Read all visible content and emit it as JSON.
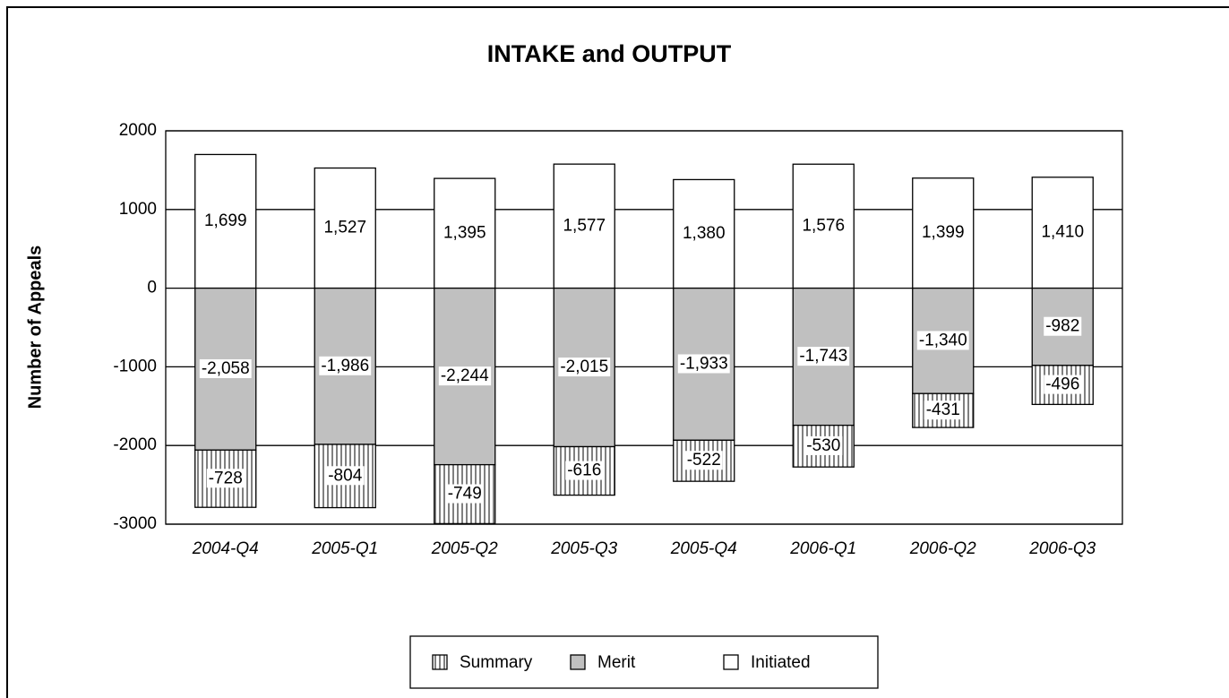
{
  "chart_data": {
    "type": "bar",
    "stacked": true,
    "title": "INTAKE and OUTPUT",
    "y_label": "Number of Appeals",
    "categories": [
      "2004-Q4",
      "2005-Q1",
      "2005-Q2",
      "2005-Q3",
      "2005-Q4",
      "2006-Q1",
      "2006-Q2",
      "2006-Q3"
    ],
    "series": [
      {
        "name": "Summary",
        "color": "#808080",
        "hatch": "vertical",
        "values": [
          -728,
          -804,
          -749,
          -616,
          -522,
          -530,
          -431,
          -496
        ],
        "value_labels": [
          "-728",
          "-804",
          "-749",
          "-616",
          "-522",
          "-530",
          "-431",
          "-496"
        ]
      },
      {
        "name": "Merit",
        "color": "#c0c0c0",
        "values": [
          -2058,
          -1986,
          -2244,
          -2015,
          -1933,
          -1743,
          -1340,
          -982
        ],
        "value_labels": [
          "-2,058",
          "-1,986",
          "-2,244",
          "-2,015",
          "-1,933",
          "-1,743",
          "-1,340",
          "-982"
        ]
      },
      {
        "name": "Initiated",
        "color": "#ffffff",
        "values": [
          1699,
          1527,
          1395,
          1577,
          1380,
          1576,
          1399,
          1410
        ],
        "value_labels": [
          "1,699",
          "1,527",
          "1,395",
          "1,577",
          "1,380",
          "1,576",
          "1,399",
          "1,410"
        ]
      }
    ],
    "ylim": [
      -3000,
      2000
    ],
    "yticks": [
      -3000,
      -2000,
      -1000,
      0,
      1000,
      2000
    ],
    "grid": true,
    "legend": "bottom"
  }
}
